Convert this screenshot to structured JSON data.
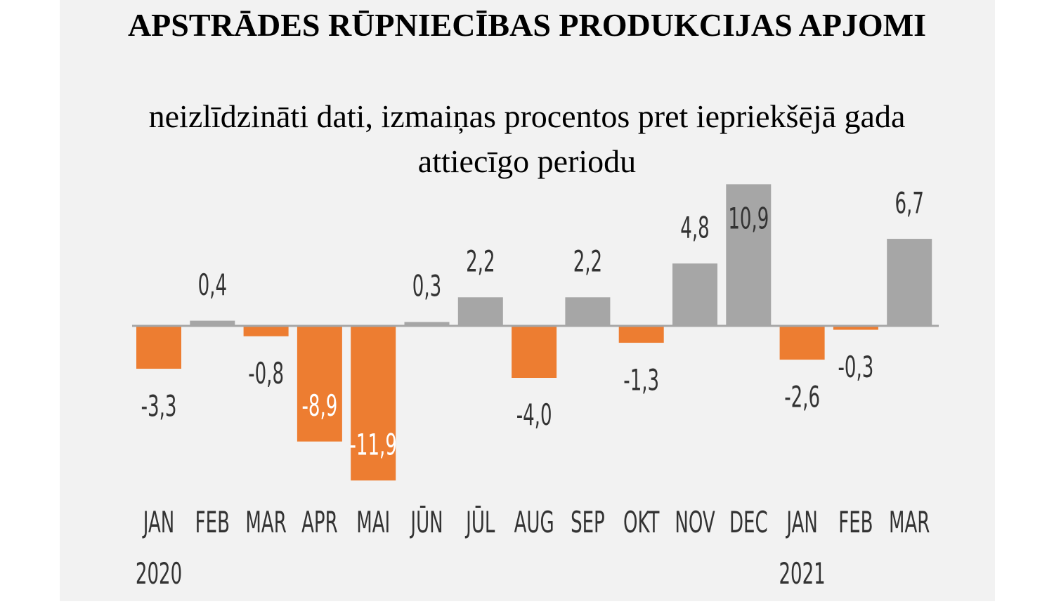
{
  "chart_data": {
    "type": "bar",
    "title": "APSTRĀDES RŪPNIECĪBAS PRODUKCIJAS APJOMI",
    "subtitle": "neizlīdzināti dati, izmaiņas procentos pret iepriekšējā gada attiecīgo periodu",
    "categories": [
      "JAN",
      "FEB",
      "MAR",
      "APR",
      "MAI",
      "JŪN",
      "JŪL",
      "AUG",
      "SEP",
      "OKT",
      "NOV",
      "DEC",
      "JAN",
      "FEB",
      "MAR"
    ],
    "year_labels": [
      {
        "index": 0,
        "label": "2020"
      },
      {
        "index": 12,
        "label": "2021"
      }
    ],
    "values": [
      -3.3,
      0.4,
      -0.8,
      -8.9,
      -11.9,
      0.3,
      2.2,
      -4.0,
      2.2,
      -1.3,
      4.8,
      10.9,
      -2.6,
      -0.3,
      6.7
    ],
    "data_labels": [
      "-3,3",
      "0,4",
      "-0,8",
      "-8,9",
      "-11,9",
      "0,3",
      "2,2",
      "-4,0",
      "2,2",
      "-1,3",
      "4,8",
      "10,9",
      "-2,6",
      "-0,3",
      "6,7"
    ],
    "labels_inside": [
      3,
      4,
      11
    ],
    "colors": {
      "negative": "#ED7D31",
      "positive": "#A6A6A6",
      "background": "#F2F2F2",
      "axis": "#A6A6A6"
    },
    "grid": false,
    "legend": "none",
    "xlabel": "",
    "ylabel": ""
  }
}
